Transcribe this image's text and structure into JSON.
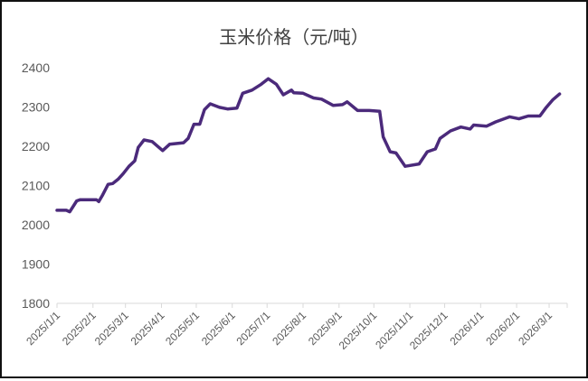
{
  "chart_data": {
    "type": "line",
    "title": "玉米价格（元/吨）",
    "xlabel": "",
    "ylabel": "",
    "ylim": [
      1800,
      2400
    ],
    "yticks": [
      1800,
      1900,
      2000,
      2100,
      2200,
      2300,
      2400
    ],
    "xlim": [
      "2025-01-01",
      "2026-03-15"
    ],
    "xtick_dates": [
      "2025-01-01",
      "2025-02-01",
      "2025-03-01",
      "2025-04-01",
      "2025-05-01",
      "2025-06-01",
      "2025-07-01",
      "2025-08-01",
      "2025-09-01",
      "2025-10-01",
      "2025-11-01",
      "2025-12-01",
      "2026-01-01",
      "2026-02-01",
      "2026-03-01"
    ],
    "xtick_labels": [
      "2025/1/1",
      "2025/2/1",
      "2025/3/1",
      "2025/4/1",
      "2025/5/1",
      "2025/6/1",
      "2025/7/1",
      "2025/8/1",
      "2025/9/1",
      "2025/10/1",
      "2025/11/1",
      "2025/12/1",
      "2026/1/1",
      "2026/2/1",
      "2026/3/1"
    ],
    "grid": false,
    "legend": "none",
    "color": "#4b2a7b",
    "series": [
      {
        "x": [
          "2025-01-01",
          "2025-01-09",
          "2025-01-12",
          "2025-01-18",
          "2025-01-21",
          "2025-02-04",
          "2025-02-06",
          "2025-02-09",
          "2025-02-14",
          "2025-02-18",
          "2025-02-23",
          "2025-02-27",
          "2025-03-04",
          "2025-03-09",
          "2025-03-12",
          "2025-03-17",
          "2025-03-24",
          "2025-04-02",
          "2025-04-08",
          "2025-04-20",
          "2025-04-24",
          "2025-04-29",
          "2025-05-04",
          "2025-05-08",
          "2025-05-13",
          "2025-05-21",
          "2025-05-28",
          "2025-06-05",
          "2025-06-10",
          "2025-06-18",
          "2025-06-26",
          "2025-07-02",
          "2025-07-09",
          "2025-07-15",
          "2025-07-22",
          "2025-07-24",
          "2025-08-01",
          "2025-08-10",
          "2025-08-17",
          "2025-08-27",
          "2025-09-04",
          "2025-09-08",
          "2025-09-17",
          "2025-09-27",
          "2025-10-06",
          "2025-10-09",
          "2025-10-15",
          "2025-10-20",
          "2025-10-28",
          "2025-11-09",
          "2025-11-16",
          "2025-11-23",
          "2025-11-27",
          "2025-12-06",
          "2025-12-15",
          "2025-12-23",
          "2025-12-26",
          "2026-01-06",
          "2026-01-14",
          "2026-01-26",
          "2026-02-03",
          "2026-02-11",
          "2026-02-21",
          "2026-02-26",
          "2026-03-04",
          "2026-03-10"
        ],
        "values": [
          2037,
          2037,
          2033,
          2061,
          2064,
          2064,
          2059,
          2074,
          2103,
          2105,
          2117,
          2130,
          2149,
          2163,
          2197,
          2216,
          2212,
          2189,
          2205,
          2209,
          2220,
          2256,
          2256,
          2293,
          2308,
          2299,
          2295,
          2297,
          2335,
          2343,
          2358,
          2372,
          2358,
          2331,
          2343,
          2336,
          2335,
          2323,
          2320,
          2304,
          2306,
          2313,
          2291,
          2291,
          2289,
          2224,
          2186,
          2183,
          2149,
          2155,
          2186,
          2193,
          2220,
          2239,
          2249,
          2244,
          2254,
          2251,
          2262,
          2275,
          2270,
          2277,
          2277,
          2297,
          2318,
          2333
        ]
      }
    ]
  }
}
